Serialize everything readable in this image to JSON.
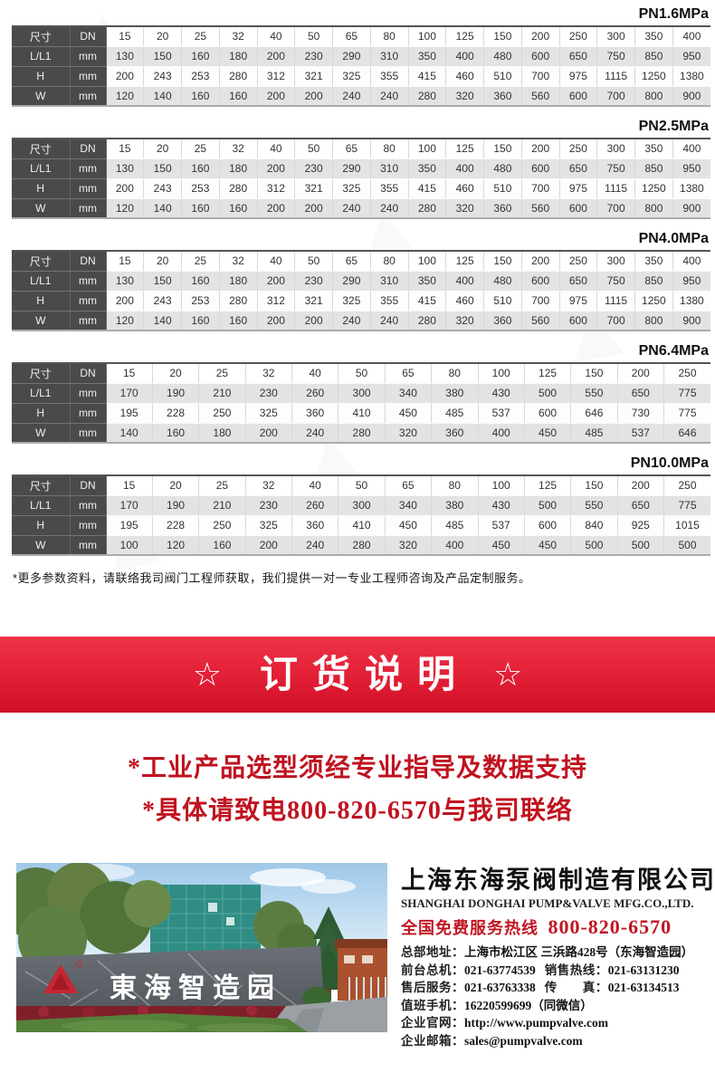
{
  "colors": {
    "banner_red_top": "#ee3448",
    "banner_red_bottom": "#cd1026",
    "notice_red": "#c01320",
    "hotline_red": "#c01622",
    "table_header_dark": "#4a4a4c",
    "table_row_shade": "#e3e3e5"
  },
  "tables": [
    {
      "pressure_label": "PN1.6MPa",
      "header": {
        "col1": "尺寸",
        "col2": "DN"
      },
      "dn": [
        "15",
        "20",
        "25",
        "32",
        "40",
        "50",
        "65",
        "80",
        "100",
        "125",
        "150",
        "200",
        "250",
        "300",
        "350",
        "400"
      ],
      "rows": [
        {
          "label": "L/L1",
          "unit": "mm",
          "values": [
            "130",
            "150",
            "160",
            "180",
            "200",
            "230",
            "290",
            "310",
            "350",
            "400",
            "480",
            "600",
            "650",
            "750",
            "850",
            "950"
          ]
        },
        {
          "label": "H",
          "unit": "mm",
          "values": [
            "200",
            "243",
            "253",
            "280",
            "312",
            "321",
            "325",
            "355",
            "415",
            "460",
            "510",
            "700",
            "975",
            "1115",
            "1250",
            "1380"
          ]
        },
        {
          "label": "W",
          "unit": "mm",
          "values": [
            "120",
            "140",
            "160",
            "160",
            "200",
            "200",
            "240",
            "240",
            "280",
            "320",
            "360",
            "560",
            "600",
            "700",
            "800",
            "900"
          ]
        }
      ]
    },
    {
      "pressure_label": "PN2.5MPa",
      "header": {
        "col1": "尺寸",
        "col2": "DN"
      },
      "dn": [
        "15",
        "20",
        "25",
        "32",
        "40",
        "50",
        "65",
        "80",
        "100",
        "125",
        "150",
        "200",
        "250",
        "300",
        "350",
        "400"
      ],
      "rows": [
        {
          "label": "L/L1",
          "unit": "mm",
          "values": [
            "130",
            "150",
            "160",
            "180",
            "200",
            "230",
            "290",
            "310",
            "350",
            "400",
            "480",
            "600",
            "650",
            "750",
            "850",
            "950"
          ]
        },
        {
          "label": "H",
          "unit": "mm",
          "values": [
            "200",
            "243",
            "253",
            "280",
            "312",
            "321",
            "325",
            "355",
            "415",
            "460",
            "510",
            "700",
            "975",
            "1115",
            "1250",
            "1380"
          ]
        },
        {
          "label": "W",
          "unit": "mm",
          "values": [
            "120",
            "140",
            "160",
            "160",
            "200",
            "200",
            "240",
            "240",
            "280",
            "320",
            "360",
            "560",
            "600",
            "700",
            "800",
            "900"
          ]
        }
      ]
    },
    {
      "pressure_label": "PN4.0MPa",
      "header": {
        "col1": "尺寸",
        "col2": "DN"
      },
      "dn": [
        "15",
        "20",
        "25",
        "32",
        "40",
        "50",
        "65",
        "80",
        "100",
        "125",
        "150",
        "200",
        "250",
        "300",
        "350",
        "400"
      ],
      "rows": [
        {
          "label": "L/L1",
          "unit": "mm",
          "values": [
            "130",
            "150",
            "160",
            "180",
            "200",
            "230",
            "290",
            "310",
            "350",
            "400",
            "480",
            "600",
            "650",
            "750",
            "850",
            "950"
          ]
        },
        {
          "label": "H",
          "unit": "mm",
          "values": [
            "200",
            "243",
            "253",
            "280",
            "312",
            "321",
            "325",
            "355",
            "415",
            "460",
            "510",
            "700",
            "975",
            "1115",
            "1250",
            "1380"
          ]
        },
        {
          "label": "W",
          "unit": "mm",
          "values": [
            "120",
            "140",
            "160",
            "160",
            "200",
            "200",
            "240",
            "240",
            "280",
            "320",
            "360",
            "560",
            "600",
            "700",
            "800",
            "900"
          ]
        }
      ]
    },
    {
      "pressure_label": "PN6.4MPa",
      "header": {
        "col1": "尺寸",
        "col2": "DN"
      },
      "dn": [
        "15",
        "20",
        "25",
        "32",
        "40",
        "50",
        "65",
        "80",
        "100",
        "125",
        "150",
        "200",
        "250"
      ],
      "rows": [
        {
          "label": "L/L1",
          "unit": "mm",
          "values": [
            "170",
            "190",
            "210",
            "230",
            "260",
            "300",
            "340",
            "380",
            "430",
            "500",
            "550",
            "650",
            "775"
          ]
        },
        {
          "label": "H",
          "unit": "mm",
          "values": [
            "195",
            "228",
            "250",
            "325",
            "360",
            "410",
            "450",
            "485",
            "537",
            "600",
            "646",
            "730",
            "775"
          ]
        },
        {
          "label": "W",
          "unit": "mm",
          "values": [
            "140",
            "160",
            "180",
            "200",
            "240",
            "280",
            "320",
            "360",
            "400",
            "450",
            "485",
            "537",
            "646"
          ]
        }
      ]
    },
    {
      "pressure_label": "PN10.0MPa",
      "header": {
        "col1": "尺寸",
        "col2": "DN"
      },
      "dn": [
        "15",
        "20",
        "25",
        "32",
        "40",
        "50",
        "65",
        "80",
        "100",
        "125",
        "150",
        "200",
        "250"
      ],
      "rows": [
        {
          "label": "L/L1",
          "unit": "mm",
          "values": [
            "170",
            "190",
            "210",
            "230",
            "260",
            "300",
            "340",
            "380",
            "430",
            "500",
            "550",
            "650",
            "775"
          ]
        },
        {
          "label": "H",
          "unit": "mm",
          "values": [
            "195",
            "228",
            "250",
            "325",
            "360",
            "410",
            "450",
            "485",
            "537",
            "600",
            "840",
            "925",
            "1015"
          ]
        },
        {
          "label": "W",
          "unit": "mm",
          "values": [
            "100",
            "120",
            "160",
            "200",
            "240",
            "280",
            "320",
            "400",
            "450",
            "450",
            "500",
            "500",
            "500"
          ]
        }
      ]
    }
  ],
  "note": "*更多参数资料，请联络我司阀门工程师获取，我们提供一对一专业工程师咨询及产品定制服务。",
  "banner": {
    "star": "☆",
    "title": "订货说明"
  },
  "notices": [
    "*工业产品选型须经专业指导及数据支持",
    "*具体请致电800-820-6570与我司联络"
  ],
  "footer": {
    "photo": {
      "sign_text": "東海智造园",
      "logo": "donghai-triangle-logo"
    },
    "company_cn": "上海东海泵阀制造有限公司",
    "company_en": "SHANGHAI DONGHAI PUMP&VALVE MFG.CO.,LTD.",
    "hotline_label": "全国免费服务热线",
    "hotline_number": "800-820-6570",
    "contact_lines": [
      [
        {
          "label": "总部地址：",
          "value": "上海市松江区 三浜路428号（东海智造园）"
        }
      ],
      [
        {
          "label": "前台总机：",
          "value": "021-63774539"
        },
        {
          "label": "销售热线：",
          "value": "021-63131230"
        }
      ],
      [
        {
          "label": "售后服务：",
          "value": "021-63763338"
        },
        {
          "label": "传　　真：",
          "value": "021-63134513"
        }
      ],
      [
        {
          "label": "值班手机：",
          "value": "16220599699（同微信）"
        }
      ],
      [
        {
          "label": "企业官网：",
          "value": "http://www.pumpvalve.com"
        }
      ],
      [
        {
          "label": "企业邮箱：",
          "value": "sales@pumpvalve.com"
        }
      ]
    ]
  }
}
